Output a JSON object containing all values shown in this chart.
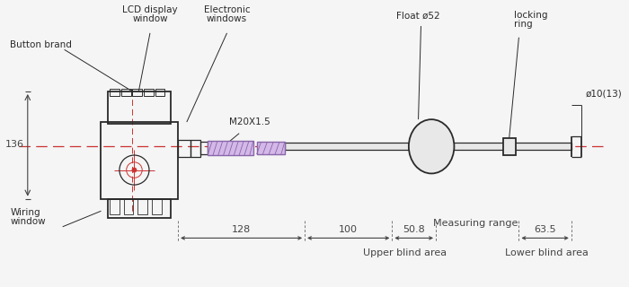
{
  "bg_color": "#f5f5f5",
  "line_color": "#2a2a2a",
  "red_dash_color": "#cc3333",
  "dim_color": "#444444",
  "purple_color": "#8866aa",
  "purple_fill": "#d4b8e8",
  "fig_width": 7.0,
  "fig_height": 3.2,
  "labels": {
    "button_brand": "Button brand",
    "lcd_display": "LCD display",
    "window": "window",
    "electronic": "Electronic",
    "windows": "windows",
    "float": "Float ø52",
    "locking": "locking",
    "ring": "ring",
    "wiring": "Wiring",
    "wiring2": "window",
    "m20": "M20X1.5",
    "dim_136": "136",
    "dim_128": "128",
    "dim_100": "100",
    "dim_508": "50.8",
    "dim_635": "63.5",
    "measuring": "Measuring range",
    "upper_blind": "Upper blind area",
    "lower_blind": "Lower blind area",
    "phi10": "ø10(13)"
  }
}
